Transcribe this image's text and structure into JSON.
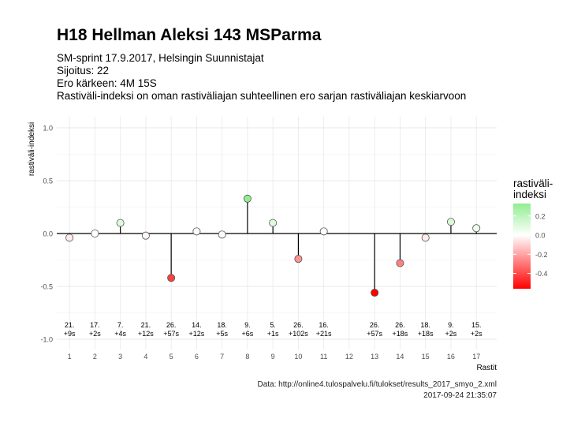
{
  "header": {
    "title": "H18 Hellman Aleksi 143 MSParma",
    "subtitle_lines": [
      "SM-sprint 17.9.2017, Helsingin Suunnistajat",
      "Sijoitus: 22",
      "Ero kärkeen: 4M 15S",
      "Rastiväli-indeksi on oman rastiväliajan suhteellinen ero sarjan rastiväliajan keskiarvoon"
    ]
  },
  "caption": {
    "source": "Data: http://online4.tulospalvelu.fi/tulokset/results_2017_smyo_2.xml",
    "timestamp": "2017-09-24 21:35:07"
  },
  "chart_data": {
    "type": "scatter",
    "style": "lollipop",
    "xlabel": "Rastit",
    "ylabel": "rastiväli-indeksi",
    "xlim": [
      0.5,
      17.8
    ],
    "ylim": [
      -1.0,
      1.0
    ],
    "x_ticks": [
      1,
      2,
      3,
      4,
      5,
      6,
      7,
      8,
      9,
      10,
      11,
      12,
      13,
      14,
      15,
      16,
      17
    ],
    "y_ticks": [
      -1.0,
      -0.5,
      0.0,
      0.5,
      1.0
    ],
    "y_tick_labels": [
      "-1.0",
      "-0.5",
      "0.0",
      "0.5",
      "1.0"
    ],
    "grid": true,
    "baseline": 0,
    "points": [
      {
        "x": 1,
        "y": -0.04,
        "rank": "21.",
        "diff": "+9s"
      },
      {
        "x": 2,
        "y": 0.0,
        "rank": "17.",
        "diff": "+2s"
      },
      {
        "x": 3,
        "y": 0.1,
        "rank": "7.",
        "diff": "+4s"
      },
      {
        "x": 4,
        "y": -0.02,
        "rank": "21.",
        "diff": "+12s"
      },
      {
        "x": 5,
        "y": -0.42,
        "rank": "26.",
        "diff": "+57s"
      },
      {
        "x": 6,
        "y": 0.02,
        "rank": "14.",
        "diff": "+12s"
      },
      {
        "x": 7,
        "y": -0.01,
        "rank": "18.",
        "diff": "+5s"
      },
      {
        "x": 8,
        "y": 0.33,
        "rank": "9.",
        "diff": "+6s"
      },
      {
        "x": 9,
        "y": 0.1,
        "rank": "5.",
        "diff": "+1s"
      },
      {
        "x": 10,
        "y": -0.24,
        "rank": "26.",
        "diff": "+102s"
      },
      {
        "x": 11,
        "y": 0.02,
        "rank": "16.",
        "diff": "+21s"
      },
      {
        "x": 13,
        "y": -0.56,
        "rank": "26.",
        "diff": "+57s"
      },
      {
        "x": 14,
        "y": -0.28,
        "rank": "26.",
        "diff": "+18s"
      },
      {
        "x": 15,
        "y": -0.04,
        "rank": "18.",
        "diff": "+18s"
      },
      {
        "x": 16,
        "y": 0.11,
        "rank": "9.",
        "diff": "+2s"
      },
      {
        "x": 17,
        "y": 0.05,
        "rank": "15.",
        "diff": "+2s"
      }
    ],
    "legend": {
      "title_lines": [
        "rastiväli-",
        "indeksi"
      ],
      "placement": "right",
      "range": [
        -0.56,
        0.33
      ],
      "ticks": [
        0.2,
        0.0,
        -0.2,
        -0.4
      ],
      "tick_labels": [
        "0.2",
        "0.0",
        "-0.2",
        "-0.4"
      ],
      "colors": {
        "low": "#ff0000",
        "mid": "#ffffff",
        "high": "#90ee90"
      }
    }
  }
}
